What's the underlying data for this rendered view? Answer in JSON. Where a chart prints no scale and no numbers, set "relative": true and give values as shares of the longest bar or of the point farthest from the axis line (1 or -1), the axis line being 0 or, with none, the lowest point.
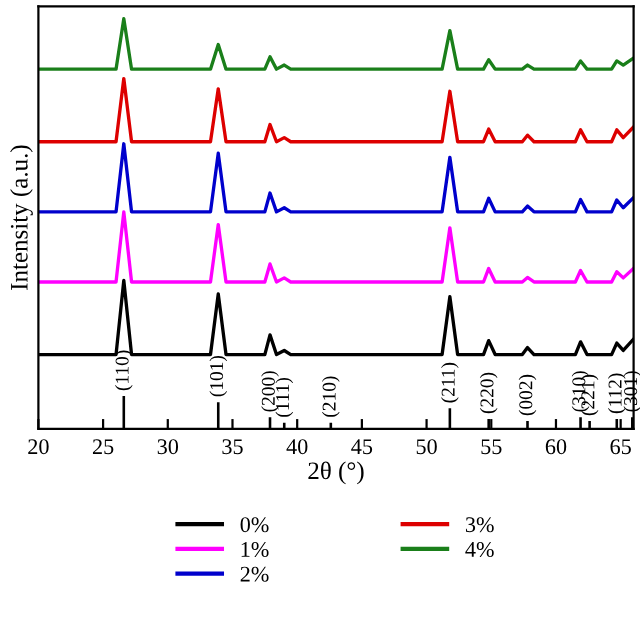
{
  "chart_data": {
    "type": "line",
    "relative": true,
    "xlabel": "2θ (°)",
    "ylabel": "Intensity (a.u.)",
    "x": [
      20,
      26.0,
      26.6,
      27.2,
      33.3,
      33.9,
      34.5,
      37.5,
      37.9,
      38.4,
      39.0,
      39.5,
      51.2,
      51.8,
      52.4,
      54.4,
      54.8,
      55.3,
      57.4,
      57.8,
      58.3,
      61.5,
      61.9,
      62.4,
      64.3,
      64.7,
      65.2,
      66
    ],
    "xlim": [
      20,
      66
    ],
    "xticks": [
      20,
      25,
      30,
      35,
      40,
      45,
      50,
      55,
      60,
      65
    ],
    "tick_labels": "x",
    "grid": false,
    "legend": "bottom",
    "series": [
      {
        "name": "0%",
        "color": "#000000",
        "values": [
          0.181,
          0.181,
          0.362,
          0.181,
          0.181,
          0.329,
          0.181,
          0.181,
          0.229,
          0.181,
          0.191,
          0.181,
          0.181,
          0.322,
          0.181,
          0.181,
          0.215,
          0.181,
          0.181,
          0.198,
          0.181,
          0.181,
          0.212,
          0.181,
          0.181,
          0.209,
          0.191,
          0.219
        ]
      },
      {
        "name": "1%",
        "color": "#ff00ff",
        "values": [
          0.358,
          0.358,
          0.529,
          0.358,
          0.358,
          0.498,
          0.358,
          0.358,
          0.402,
          0.358,
          0.368,
          0.358,
          0.358,
          0.49,
          0.358,
          0.358,
          0.391,
          0.358,
          0.358,
          0.369,
          0.358,
          0.358,
          0.386,
          0.358,
          0.358,
          0.383,
          0.368,
          0.391
        ]
      },
      {
        "name": "2%",
        "color": "#0000cc",
        "values": [
          0.529,
          0.529,
          0.695,
          0.529,
          0.529,
          0.672,
          0.529,
          0.529,
          0.575,
          0.529,
          0.539,
          0.529,
          0.529,
          0.662,
          0.529,
          0.529,
          0.562,
          0.529,
          0.529,
          0.543,
          0.529,
          0.529,
          0.559,
          0.529,
          0.529,
          0.558,
          0.539,
          0.564
        ]
      },
      {
        "name": "3%",
        "color": "#dd0000",
        "values": [
          0.7,
          0.7,
          0.854,
          0.7,
          0.7,
          0.829,
          0.7,
          0.7,
          0.742,
          0.7,
          0.71,
          0.7,
          0.7,
          0.823,
          0.7,
          0.7,
          0.731,
          0.7,
          0.7,
          0.716,
          0.7,
          0.7,
          0.729,
          0.7,
          0.7,
          0.729,
          0.71,
          0.736
        ]
      },
      {
        "name": "4%",
        "color": "#1a7f1a",
        "values": [
          0.877,
          0.877,
          1.0,
          0.877,
          0.877,
          0.937,
          0.877,
          0.877,
          0.907,
          0.877,
          0.887,
          0.877,
          0.877,
          0.971,
          0.877,
          0.877,
          0.9,
          0.877,
          0.877,
          0.887,
          0.877,
          0.877,
          0.897,
          0.877,
          0.877,
          0.897,
          0.887,
          0.904
        ]
      },
      {
        "type": "bar",
        "color": "#000000",
        "x": [
          26.6,
          33.9,
          37.9,
          39.0,
          42.6,
          51.8,
          54.8,
          57.8,
          61.9,
          62.6,
          64.7,
          65.9
        ],
        "values": [
          0.08,
          0.065,
          0.028,
          0.015,
          0.015,
          0.05,
          0.024,
          0.019,
          0.028,
          0.019,
          0.024,
          0.028
        ]
      }
    ],
    "annotations": [
      {
        "text": "(110)",
        "x": 26.6,
        "y": 0.08
      },
      {
        "text": "(101)",
        "x": 33.9,
        "y": 0.065
      },
      {
        "text": "(200)",
        "x": 37.9,
        "y": 0.028
      },
      {
        "text": "(111)",
        "x": 39.0,
        "y": 0.015
      },
      {
        "text": "(210)",
        "x": 42.6,
        "y": 0.015
      },
      {
        "text": "(211)",
        "x": 51.8,
        "y": 0.05
      },
      {
        "text": "(220)",
        "x": 54.8,
        "y": 0.024
      },
      {
        "text": "(002)",
        "x": 57.8,
        "y": 0.019
      },
      {
        "text": "(310)",
        "x": 61.9,
        "y": 0.028
      },
      {
        "text": "(221)",
        "x": 62.6,
        "y": 0.019
      },
      {
        "text": "(112)",
        "x": 64.7,
        "y": 0.024
      },
      {
        "text": "(301)",
        "x": 65.9,
        "y": 0.028
      }
    ]
  }
}
